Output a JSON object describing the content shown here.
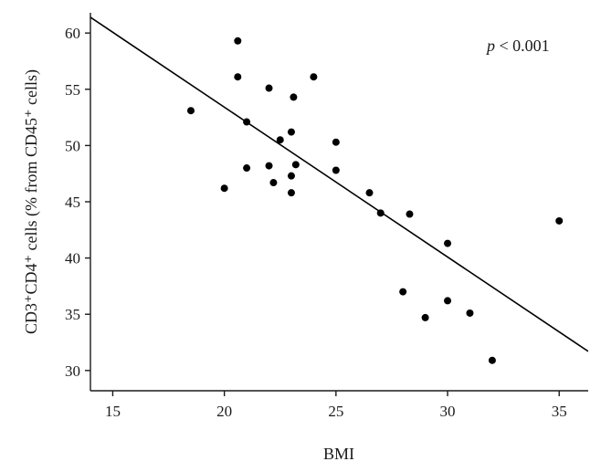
{
  "chart_data": {
    "type": "scatter",
    "xlabel": "BMI",
    "ylabel": "CD3⁺CD4⁺ cells (% from CD45⁺ cells)",
    "xlim": [
      14,
      36.3
    ],
    "ylim": [
      28.2,
      61.8
    ],
    "x_ticks": [
      15,
      20,
      25,
      30,
      35
    ],
    "y_ticks": [
      30,
      35,
      40,
      45,
      50,
      55,
      60
    ],
    "grid": false,
    "annotation": {
      "italic": "p",
      "text": " < 0.001",
      "position": "top-right"
    },
    "points": [
      {
        "x": 18.5,
        "y": 53.1
      },
      {
        "x": 20.0,
        "y": 46.2
      },
      {
        "x": 20.6,
        "y": 59.3
      },
      {
        "x": 20.6,
        "y": 56.1
      },
      {
        "x": 21.0,
        "y": 52.1
      },
      {
        "x": 21.0,
        "y": 48.0
      },
      {
        "x": 22.0,
        "y": 55.1
      },
      {
        "x": 22.0,
        "y": 48.2
      },
      {
        "x": 22.2,
        "y": 46.7
      },
      {
        "x": 22.5,
        "y": 50.5
      },
      {
        "x": 23.0,
        "y": 51.2
      },
      {
        "x": 23.0,
        "y": 47.3
      },
      {
        "x": 23.0,
        "y": 45.8
      },
      {
        "x": 23.1,
        "y": 54.3
      },
      {
        "x": 23.2,
        "y": 48.3
      },
      {
        "x": 24.0,
        "y": 56.1
      },
      {
        "x": 25.0,
        "y": 50.3
      },
      {
        "x": 25.0,
        "y": 47.8
      },
      {
        "x": 26.5,
        "y": 45.8
      },
      {
        "x": 27.0,
        "y": 44.0
      },
      {
        "x": 28.0,
        "y": 37.0
      },
      {
        "x": 28.3,
        "y": 43.9
      },
      {
        "x": 29.0,
        "y": 34.7
      },
      {
        "x": 30.0,
        "y": 41.3
      },
      {
        "x": 30.0,
        "y": 36.2
      },
      {
        "x": 31.0,
        "y": 35.1
      },
      {
        "x": 32.0,
        "y": 30.9
      },
      {
        "x": 35.0,
        "y": 43.3
      }
    ],
    "regression_line": {
      "x": [
        14,
        36.3
      ],
      "y": [
        61.4,
        31.7
      ]
    }
  }
}
